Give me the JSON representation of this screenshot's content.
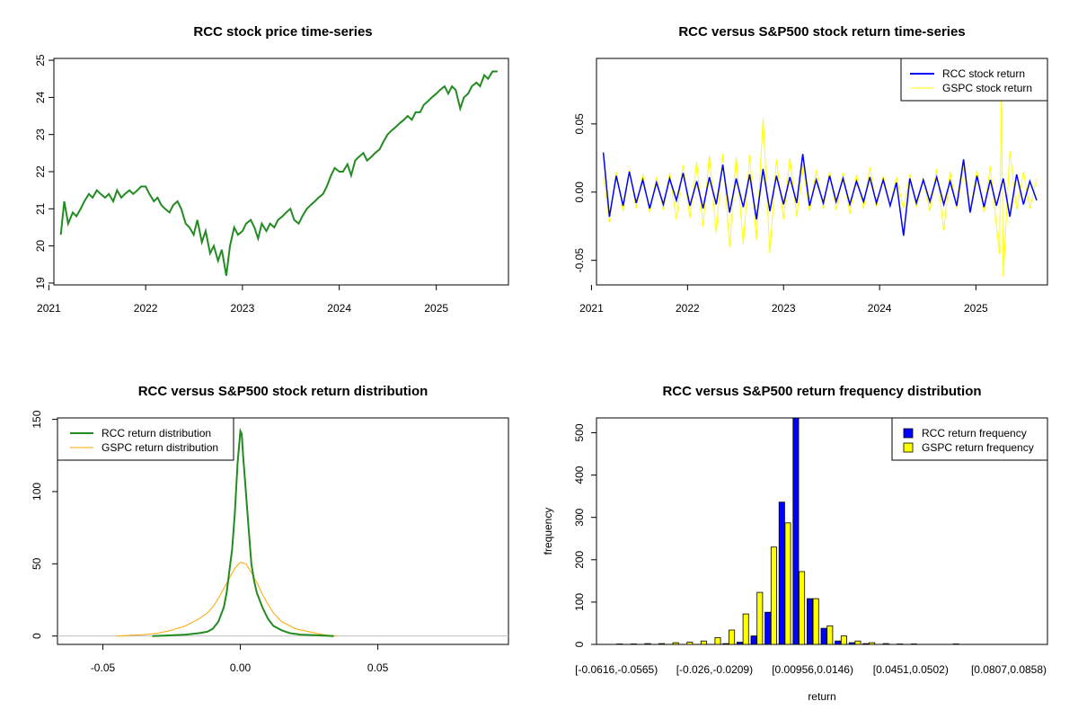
{
  "chart_data": [
    {
      "type": "line",
      "title": "RCC stock price time-series",
      "xlabel": "",
      "ylabel": "",
      "x_ticks": [
        "2021",
        "2022",
        "2023",
        "2024",
        "2025"
      ],
      "y_ticks": [
        "19",
        "20",
        "21",
        "22",
        "23",
        "24",
        "25"
      ],
      "xlim": [
        "2021-01-20",
        "2025-09-30"
      ],
      "ylim": [
        18.95,
        25.05
      ],
      "series": [
        {
          "color": "#228B22",
          "x": [
            "2021-02-15",
            "2021-02-28",
            "2021-03-15",
            "2021-04-01",
            "2021-04-15",
            "2021-05-01",
            "2021-05-15",
            "2021-06-01",
            "2021-06-15",
            "2021-07-01",
            "2021-07-15",
            "2021-08-01",
            "2021-08-15",
            "2021-09-01",
            "2021-09-15",
            "2021-10-01",
            "2021-10-15",
            "2021-11-01",
            "2021-11-15",
            "2021-12-01",
            "2021-12-15",
            "2022-01-01",
            "2022-01-15",
            "2022-02-01",
            "2022-02-15",
            "2022-03-01",
            "2022-03-15",
            "2022-04-01",
            "2022-04-15",
            "2022-05-01",
            "2022-05-15",
            "2022-06-01",
            "2022-06-15",
            "2022-07-01",
            "2022-07-15",
            "2022-08-01",
            "2022-08-15",
            "2022-09-01",
            "2022-09-15",
            "2022-10-01",
            "2022-10-15",
            "2022-11-01",
            "2022-11-15",
            "2022-12-01",
            "2022-12-15",
            "2023-01-01",
            "2023-01-15",
            "2023-02-01",
            "2023-02-15",
            "2023-03-01",
            "2023-03-15",
            "2023-04-01",
            "2023-04-15",
            "2023-05-01",
            "2023-05-15",
            "2023-06-01",
            "2023-06-15",
            "2023-07-01",
            "2023-07-15",
            "2023-08-01",
            "2023-08-15",
            "2023-09-01",
            "2023-09-15",
            "2023-10-01",
            "2023-10-15",
            "2023-11-01",
            "2023-11-15",
            "2023-12-01",
            "2023-12-15",
            "2024-01-01",
            "2024-01-15",
            "2024-02-01",
            "2024-02-15",
            "2024-03-01",
            "2024-03-15",
            "2024-04-01",
            "2024-04-15",
            "2024-05-01",
            "2024-05-15",
            "2024-06-01",
            "2024-06-15",
            "2024-07-01",
            "2024-07-15",
            "2024-08-01",
            "2024-08-15",
            "2024-09-01",
            "2024-09-15",
            "2024-10-01",
            "2024-10-15",
            "2024-11-01",
            "2024-11-15",
            "2024-12-01",
            "2024-12-15",
            "2025-01-01",
            "2025-01-15",
            "2025-02-01",
            "2025-02-15",
            "2025-03-01",
            "2025-03-15",
            "2025-04-01",
            "2025-04-15",
            "2025-05-01",
            "2025-05-15",
            "2025-06-01",
            "2025-06-15",
            "2025-07-01",
            "2025-07-15",
            "2025-08-01",
            "2025-08-20"
          ],
          "values": [
            20.3,
            21.2,
            20.6,
            20.9,
            20.8,
            21.0,
            21.2,
            21.4,
            21.3,
            21.5,
            21.4,
            21.3,
            21.4,
            21.2,
            21.5,
            21.3,
            21.4,
            21.5,
            21.4,
            21.5,
            21.6,
            21.6,
            21.4,
            21.2,
            21.3,
            21.1,
            21.0,
            20.9,
            21.1,
            21.2,
            21.0,
            20.6,
            20.5,
            20.3,
            20.7,
            20.1,
            20.4,
            19.8,
            20.0,
            19.6,
            19.9,
            19.2,
            20.0,
            20.5,
            20.3,
            20.4,
            20.6,
            20.7,
            20.5,
            20.2,
            20.6,
            20.4,
            20.6,
            20.5,
            20.7,
            20.8,
            20.9,
            21.0,
            20.7,
            20.6,
            20.8,
            21.0,
            21.1,
            21.2,
            21.3,
            21.4,
            21.6,
            21.9,
            22.1,
            22.0,
            22.0,
            22.2,
            21.9,
            22.3,
            22.4,
            22.5,
            22.3,
            22.4,
            22.5,
            22.6,
            22.8,
            23.0,
            23.1,
            23.2,
            23.3,
            23.4,
            23.5,
            23.4,
            23.6,
            23.6,
            23.8,
            23.9,
            24.0,
            24.1,
            24.2,
            24.3,
            24.1,
            24.3,
            24.2,
            23.7,
            24.0,
            24.1,
            24.3,
            24.4,
            24.3,
            24.6,
            24.5,
            24.7,
            24.7
          ]
        }
      ]
    },
    {
      "type": "line",
      "title": "RCC versus S&P500 stock return time-series",
      "xlabel": "",
      "ylabel": "",
      "x_ticks": [
        "2021",
        "2022",
        "2023",
        "2024",
        "2025"
      ],
      "y_ticks": [
        "-0.05",
        "0.00",
        "0.05"
      ],
      "xlim": [
        "2021-01-20",
        "2025-09-30"
      ],
      "ylim": [
        -0.068,
        0.098
      ],
      "legend": "top-right",
      "series": [
        {
          "name": "RCC stock return",
          "color": "#0000FF",
          "x": [
            "2021-02-15",
            "2021-03-10",
            "2021-04-05",
            "2021-05-01",
            "2021-05-25",
            "2021-06-20",
            "2021-07-15",
            "2021-08-10",
            "2021-09-05",
            "2021-10-01",
            "2021-10-25",
            "2021-11-20",
            "2021-12-15",
            "2022-01-10",
            "2022-02-05",
            "2022-03-01",
            "2022-03-25",
            "2022-04-20",
            "2022-05-15",
            "2022-06-10",
            "2022-07-05",
            "2022-08-01",
            "2022-08-25",
            "2022-09-20",
            "2022-10-15",
            "2022-11-10",
            "2022-12-05",
            "2023-01-01",
            "2023-01-25",
            "2023-02-20",
            "2023-03-15",
            "2023-04-10",
            "2023-05-05",
            "2023-06-01",
            "2023-06-25",
            "2023-07-20",
            "2023-08-15",
            "2023-09-10",
            "2023-10-05",
            "2023-11-01",
            "2023-11-25",
            "2023-12-20",
            "2024-01-15",
            "2024-02-10",
            "2024-03-05",
            "2024-04-01",
            "2024-04-25",
            "2024-05-20",
            "2024-06-15",
            "2024-07-10",
            "2024-08-05",
            "2024-09-01",
            "2024-09-25",
            "2024-10-20",
            "2024-11-15",
            "2024-12-10",
            "2025-01-05",
            "2025-02-01",
            "2025-02-25",
            "2025-03-20",
            "2025-04-15",
            "2025-05-10",
            "2025-06-05",
            "2025-07-01",
            "2025-07-25",
            "2025-08-20"
          ],
          "values": [
            0.029,
            -0.018,
            0.012,
            -0.01,
            0.015,
            -0.008,
            0.009,
            -0.012,
            0.007,
            -0.009,
            0.01,
            -0.006,
            0.014,
            -0.01,
            0.008,
            -0.012,
            0.011,
            -0.009,
            0.02,
            -0.015,
            0.01,
            -0.011,
            0.013,
            -0.02,
            0.017,
            -0.014,
            0.012,
            -0.009,
            0.011,
            -0.008,
            0.028,
            -0.01,
            0.009,
            -0.008,
            0.012,
            -0.007,
            0.01,
            -0.009,
            0.008,
            -0.007,
            0.011,
            -0.008,
            0.009,
            -0.01,
            0.007,
            -0.032,
            0.01,
            -0.008,
            0.009,
            -0.007,
            0.011,
            -0.009,
            0.008,
            -0.01,
            0.024,
            -0.015,
            0.012,
            -0.011,
            0.009,
            -0.01,
            0.01,
            -0.018,
            0.013,
            -0.009,
            0.008,
            -0.006
          ]
        },
        {
          "name": "GSPC stock return",
          "color": "#FFFF00",
          "x": [
            "2021-02-15",
            "2021-03-10",
            "2021-04-05",
            "2021-05-01",
            "2021-05-25",
            "2021-06-20",
            "2021-07-15",
            "2021-08-10",
            "2021-09-05",
            "2021-10-01",
            "2021-10-25",
            "2021-11-20",
            "2021-12-15",
            "2022-01-10",
            "2022-02-05",
            "2022-03-01",
            "2022-03-25",
            "2022-04-20",
            "2022-05-15",
            "2022-06-10",
            "2022-07-05",
            "2022-08-01",
            "2022-08-25",
            "2022-09-20",
            "2022-10-15",
            "2022-11-10",
            "2022-12-05",
            "2023-01-01",
            "2023-01-25",
            "2023-02-20",
            "2023-03-15",
            "2023-04-10",
            "2023-05-05",
            "2023-06-01",
            "2023-06-25",
            "2023-07-20",
            "2023-08-15",
            "2023-09-10",
            "2023-10-05",
            "2023-11-01",
            "2023-11-25",
            "2023-12-20",
            "2024-01-15",
            "2024-02-10",
            "2024-03-05",
            "2024-04-01",
            "2024-04-25",
            "2024-05-20",
            "2024-06-15",
            "2024-07-10",
            "2024-08-05",
            "2024-09-01",
            "2024-09-25",
            "2024-10-20",
            "2024-11-15",
            "2024-12-10",
            "2025-01-05",
            "2025-02-01",
            "2025-02-25",
            "2025-03-20",
            "2025-04-01",
            "2025-04-08",
            "2025-04-15",
            "2025-05-10",
            "2025-06-05",
            "2025-07-01",
            "2025-07-25",
            "2025-08-20"
          ],
          "values": [
            0.012,
            -0.022,
            0.015,
            -0.014,
            0.016,
            -0.012,
            0.013,
            -0.015,
            0.011,
            -0.013,
            0.014,
            -0.02,
            0.02,
            -0.019,
            0.022,
            -0.025,
            0.027,
            -0.03,
            0.028,
            -0.04,
            0.026,
            -0.038,
            0.027,
            -0.035,
            0.054,
            -0.045,
            0.024,
            -0.02,
            0.025,
            -0.018,
            0.02,
            -0.014,
            0.016,
            -0.012,
            0.015,
            -0.013,
            0.014,
            -0.016,
            0.013,
            -0.012,
            0.018,
            -0.011,
            0.012,
            -0.01,
            0.011,
            -0.012,
            0.013,
            -0.011,
            0.01,
            -0.014,
            0.017,
            -0.028,
            0.015,
            -0.012,
            0.018,
            -0.014,
            0.016,
            -0.015,
            0.019,
            -0.025,
            -0.045,
            0.069,
            -0.062,
            0.03,
            -0.013,
            0.015,
            -0.012,
            0.01
          ]
        }
      ]
    },
    {
      "type": "line",
      "title": "RCC versus S&P500 stock return distribution",
      "xlabel": "",
      "ylabel": "",
      "x_ticks": [
        "-0.05",
        "0.00",
        "0.05"
      ],
      "y_ticks": [
        "0",
        "50",
        "100",
        "150"
      ],
      "xlim": [
        -0.0665,
        0.0975
      ],
      "ylim": [
        -5.8,
        151
      ],
      "legend": "top-left",
      "series": [
        {
          "name": "RCC return distribution",
          "color": "#228B22",
          "x": [
            -0.032,
            -0.025,
            -0.02,
            -0.015,
            -0.012,
            -0.01,
            -0.008,
            -0.006,
            -0.005,
            -0.004,
            -0.003,
            -0.002,
            -0.001,
            0.0,
            0.0005,
            0.001,
            0.002,
            0.003,
            0.004,
            0.005,
            0.006,
            0.008,
            0.01,
            0.012,
            0.015,
            0.018,
            0.022,
            0.028,
            0.034
          ],
          "values": [
            0,
            0.5,
            1,
            2,
            3,
            5,
            10,
            20,
            30,
            45,
            60,
            85,
            120,
            142,
            140,
            125,
            100,
            75,
            50,
            38,
            30,
            20,
            12,
            7,
            4,
            2,
            1,
            0.5,
            0
          ]
        },
        {
          "name": "GSPC return distribution",
          "color": "#FFA500",
          "x": [
            -0.045,
            -0.035,
            -0.03,
            -0.025,
            -0.02,
            -0.015,
            -0.012,
            -0.01,
            -0.008,
            -0.006,
            -0.004,
            -0.002,
            0.0,
            0.002,
            0.004,
            0.006,
            0.008,
            0.01,
            0.012,
            0.015,
            0.02,
            0.025,
            0.03,
            0.035
          ],
          "values": [
            0,
            1,
            2,
            4,
            7,
            12,
            16,
            20,
            26,
            33,
            40,
            47,
            51,
            50,
            44,
            37,
            29,
            22,
            16,
            10,
            5,
            3,
            1,
            0
          ]
        }
      ],
      "reference_line": 0
    },
    {
      "type": "bar",
      "title": "RCC versus S&P500 return frequency distribution",
      "xlabel": "return",
      "ylabel": "frequency",
      "y_ticks": [
        "0",
        "100",
        "200",
        "300",
        "400",
        "500"
      ],
      "ylim": [
        0,
        535
      ],
      "legend": "top-right",
      "categories": [
        "[-0.0616,-0.0565)",
        "[-0.0565,-0.0514)",
        "[-0.0514,-0.0463)",
        "[-0.0463,-0.0413)",
        "[-0.0413,-0.0362)",
        "[-0.0362,-0.0311)",
        "[-0.0311,-0.026)",
        "[-0.026,-0.0209)",
        "[-0.0209,-0.0158)",
        "[-0.0158,-0.0107)",
        "[-0.0107,-0.00564)",
        "[-0.00564,-0.000555)",
        "[-0.000555,0.00453)",
        "[0.00453,0.00956)",
        "[0.00956,0.0146)",
        "[0.0146,0.0197)",
        "[0.0197,0.0248)",
        "[0.0248,0.0299)",
        "[0.0299,0.035)",
        "[0.035,0.0401)",
        "[0.0401,0.0451)",
        "[0.0451,0.0502)",
        "[0.0502,0.0553)",
        "[0.0553,0.0604)",
        "[0.0604,0.0655)",
        "[0.0655,0.0706)",
        "[0.0706,0.0756)",
        "[0.0756,0.0807)",
        "[0.0807,0.0858)"
      ],
      "shown_category_labels": [
        "[-0.0616,-0.0565)",
        "[-0.026,-0.0209)",
        "[0.00956,0.0146)",
        "[0.0451,0.0502)",
        "[0.0807,0.0858)"
      ],
      "series": [
        {
          "name": "RCC return frequency",
          "color": "#0000FF",
          "values": [
            0,
            0,
            0,
            0,
            0,
            0,
            0,
            0,
            2,
            5,
            20,
            76,
            336,
            535,
            108,
            38,
            8,
            4,
            2,
            0,
            0,
            0,
            0,
            0,
            0,
            0,
            0,
            0,
            0
          ]
        },
        {
          "name": "GSPC return frequency",
          "color": "#FFFF00",
          "values": [
            1,
            1,
            2,
            2,
            4,
            5,
            8,
            16,
            34,
            72,
            123,
            230,
            287,
            172,
            108,
            44,
            20,
            8,
            4,
            2,
            1,
            1,
            0,
            0,
            1,
            0,
            0,
            0,
            0
          ]
        }
      ]
    }
  ]
}
